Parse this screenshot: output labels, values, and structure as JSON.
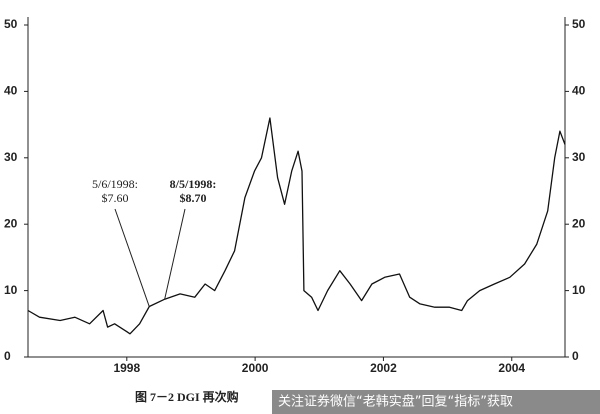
{
  "chart_data": {
    "type": "line",
    "x": [
      1996.46,
      1996.64,
      1996.96,
      1997.19,
      1997.42,
      1997.63,
      1997.7,
      1997.81,
      1997.97,
      1998.05,
      1998.2,
      1998.35,
      1998.59,
      1998.83,
      1999.06,
      1999.22,
      1999.37,
      1999.53,
      1999.68,
      1999.84,
      1999.99,
      2000.1,
      2000.23,
      2000.35,
      2000.46,
      2000.57,
      2000.67,
      2000.73,
      2000.76,
      2000.88,
      2000.98,
      2001.13,
      2001.32,
      2001.48,
      2001.66,
      2001.82,
      2002.02,
      2002.25,
      2002.41,
      2002.57,
      2002.8,
      2003.03,
      2003.22,
      2003.31,
      2003.5,
      2003.73,
      2003.97,
      2004.2,
      2004.39,
      2004.56,
      2004.67,
      2004.75,
      2004.83
    ],
    "series": [
      {
        "color": "#111111",
        "values": [
          7,
          6,
          5.5,
          6,
          5,
          7,
          4.5,
          5,
          4,
          3.5,
          5,
          7.6,
          8.7,
          9.5,
          9,
          11,
          10,
          13,
          16,
          24,
          28,
          30,
          36,
          27,
          23,
          28,
          31,
          28,
          10,
          9,
          7,
          10,
          13,
          11,
          8.5,
          11,
          12,
          12.5,
          9,
          8,
          7.5,
          7.5,
          7,
          8.5,
          10,
          11,
          12,
          14,
          17,
          22,
          30,
          34,
          32
        ]
      }
    ],
    "xlim": [
      1996.46,
      2004.83
    ],
    "xticks": [
      1998,
      2000,
      2002,
      2004
    ],
    "ylim": [
      0,
      50
    ],
    "yticks": [
      0,
      10,
      20,
      30,
      40,
      50
    ],
    "y2lim": [
      0,
      50
    ],
    "y2ticks": [
      0,
      10,
      20,
      30,
      40,
      50
    ],
    "annotations": [
      {
        "date": "5/6/1998:",
        "price": "$7.60",
        "point": 11
      },
      {
        "date": "8/5/1998:",
        "price": "$8.70",
        "point": 12
      }
    ],
    "caption": "图 7－2   DGI 再次购",
    "watermark": "关注证券微信“老韩实盘”回复“指标”获取"
  }
}
